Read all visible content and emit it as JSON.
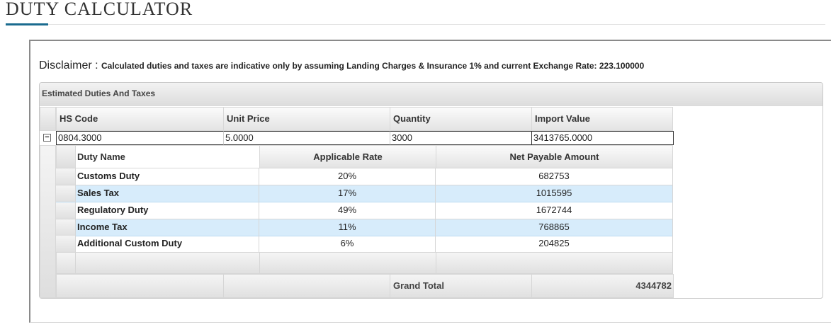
{
  "page": {
    "title": "DUTY CALCULATOR"
  },
  "disclaimer": {
    "label": "Disclaimer :",
    "text": "Calculated duties and taxes are indicative only by assuming Landing Charges & Insurance 1% and current Exchange Rate: 223.100000"
  },
  "grid": {
    "caption": "Estimated Duties And Taxes",
    "columns": [
      "HS Code",
      "Unit Price",
      "Quantity",
      "Import Value"
    ],
    "row": {
      "hs_code": "0804.3000",
      "unit_price": "5.0000",
      "quantity": "3000",
      "import_value": "3413765.0000"
    },
    "expander_icon": "minus-box-icon",
    "detail": {
      "columns": [
        "Duty Name",
        "Applicable Rate",
        "Net Payable Amount"
      ],
      "rows": [
        {
          "name": "Customs Duty",
          "rate": "20%",
          "amount": "682753"
        },
        {
          "name": "Sales Tax",
          "rate": "17%",
          "amount": "1015595"
        },
        {
          "name": "Regulatory Duty",
          "rate": "49%",
          "amount": "1672744"
        },
        {
          "name": "Income Tax",
          "rate": "11%",
          "amount": "768865"
        },
        {
          "name": "Additional Custom Duty",
          "rate": "6%",
          "amount": "204825"
        }
      ]
    },
    "footer": {
      "label": "Grand Total",
      "value": "4344782"
    }
  },
  "colors": {
    "accent": "#1a6b8f",
    "row_highlight": "#d7ecfb"
  }
}
